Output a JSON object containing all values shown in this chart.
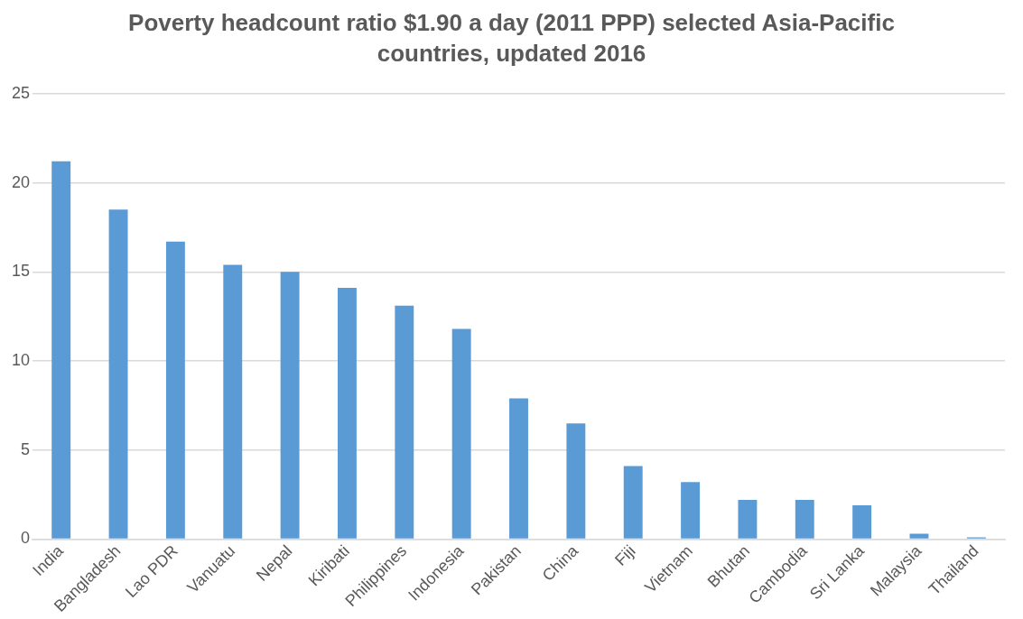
{
  "chart_data": {
    "type": "bar",
    "title": "Poverty headcount ratio $1.90 a day (2011 PPP) selected Asia-Pacific countries, updated 2016",
    "categories": [
      "India",
      "Bangladesh",
      "Lao PDR",
      "Vanuatu",
      "Nepal",
      "Kiribati",
      "Philippines",
      "Indonesia",
      "Pakistan",
      "China",
      "Fiji",
      "Vietnam",
      "Bhutan",
      "Cambodia",
      "Sri Lanka",
      "Malaysia",
      "Thailand"
    ],
    "values": [
      21.2,
      18.5,
      16.7,
      15.4,
      15.0,
      14.1,
      13.1,
      11.8,
      7.9,
      6.5,
      4.1,
      3.2,
      2.2,
      2.2,
      1.9,
      0.3,
      0.1
    ],
    "color": "#5b9bd5",
    "ylim": [
      0,
      25
    ],
    "yticks": [
      0,
      5,
      10,
      15,
      20,
      25
    ],
    "grid": "y",
    "legend": false
  }
}
